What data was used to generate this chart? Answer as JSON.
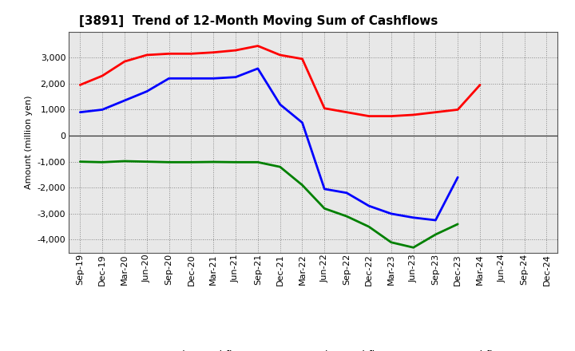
{
  "title": "[3891]  Trend of 12-Month Moving Sum of Cashflows",
  "ylabel": "Amount (million yen)",
  "x_labels": [
    "Sep-19",
    "Dec-19",
    "Mar-20",
    "Jun-20",
    "Sep-20",
    "Dec-20",
    "Mar-21",
    "Jun-21",
    "Sep-21",
    "Dec-21",
    "Mar-22",
    "Jun-22",
    "Sep-22",
    "Dec-22",
    "Mar-23",
    "Jun-23",
    "Sep-23",
    "Dec-23",
    "Mar-24",
    "Jun-24",
    "Sep-24",
    "Dec-24"
  ],
  "operating_cashflow": [
    1950,
    2300,
    2850,
    3100,
    3150,
    3150,
    3200,
    3280,
    3450,
    3100,
    2950,
    1050,
    900,
    750,
    750,
    800,
    900,
    1000,
    1950,
    null,
    null,
    null
  ],
  "investing_cashflow": [
    -1000,
    -1020,
    -980,
    -1000,
    -1020,
    -1020,
    -1010,
    -1020,
    -1020,
    -1200,
    -1900,
    -2800,
    -3100,
    -3500,
    -4100,
    -4300,
    -3800,
    -3400,
    null,
    null,
    null,
    null
  ],
  "free_cashflow": [
    900,
    1000,
    1350,
    1700,
    2200,
    2200,
    2200,
    2250,
    2580,
    1200,
    500,
    -2050,
    -2200,
    -2700,
    -3000,
    -3150,
    -3250,
    -1600,
    null,
    null,
    null,
    null
  ],
  "operating_color": "#ff0000",
  "investing_color": "#008000",
  "free_color": "#0000ff",
  "ylim": [
    -4500,
    4000
  ],
  "yticks": [
    -4000,
    -3000,
    -2000,
    -1000,
    0,
    1000,
    2000,
    3000
  ],
  "background_color": "#ffffff",
  "plot_bg_color": "#e8e8e8",
  "grid_color": "#888888",
  "title_fontsize": 11,
  "label_fontsize": 8,
  "tick_fontsize": 8
}
